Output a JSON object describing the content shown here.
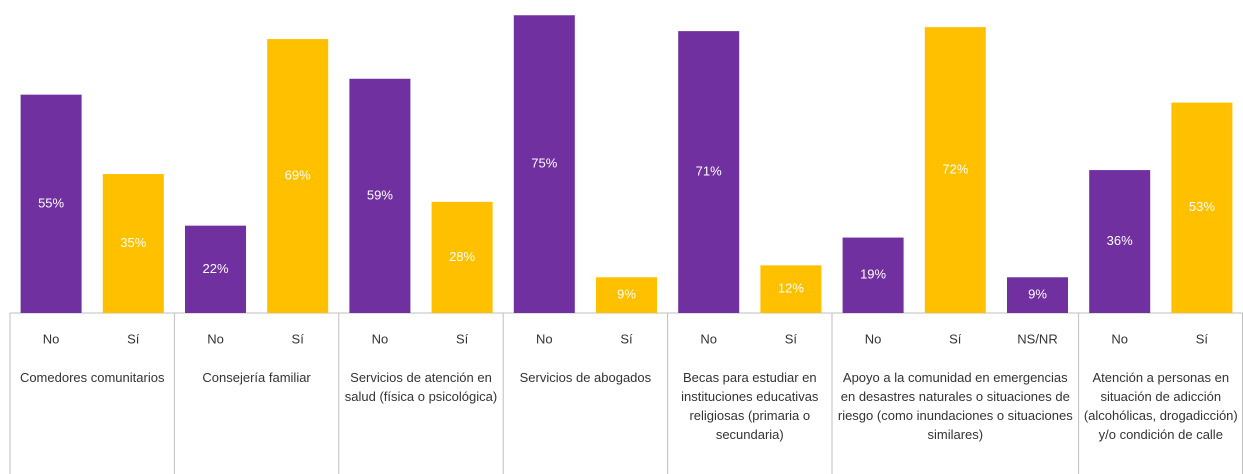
{
  "chart_data": {
    "type": "bar",
    "ylim": [
      0,
      80
    ],
    "groups": [
      {
        "name": "Comedores comunitarios",
        "categories": [
          "No",
          "Sí"
        ],
        "values": [
          55,
          35
        ],
        "value_labels": [
          "55%",
          "35%"
        ],
        "colors": [
          "#7030a0",
          "#ffc000"
        ]
      },
      {
        "name": "Consejería familiar",
        "categories": [
          "No",
          "Sí"
        ],
        "values": [
          22,
          69
        ],
        "value_labels": [
          "22%",
          "69%"
        ],
        "colors": [
          "#7030a0",
          "#ffc000"
        ]
      },
      {
        "name": "Servicios de atención en salud (física o psicológica)",
        "categories": [
          "No",
          "Sí"
        ],
        "values": [
          59,
          28
        ],
        "value_labels": [
          "59%",
          "28%"
        ],
        "colors": [
          "#7030a0",
          "#ffc000"
        ]
      },
      {
        "name": "Servicios de abogados",
        "categories": [
          "No",
          "Sí"
        ],
        "values": [
          75,
          9
        ],
        "value_labels": [
          "75%",
          "9%"
        ],
        "colors": [
          "#7030a0",
          "#ffc000"
        ]
      },
      {
        "name": "Becas para estudiar en instituciones educativas religiosas (primaria o secundaria)",
        "categories": [
          "No",
          "Sí"
        ],
        "values": [
          71,
          12
        ],
        "value_labels": [
          "71%",
          "12%"
        ],
        "colors": [
          "#7030a0",
          "#ffc000"
        ]
      },
      {
        "name": "Apoyo a la comunidad en emergencias en desastres naturales o situaciones de riesgo (como inundaciones o situaciones similares)",
        "categories": [
          "No",
          "Sí",
          "NS/NR"
        ],
        "values": [
          19,
          72,
          9
        ],
        "value_labels": [
          "19%",
          "72%",
          "9%"
        ],
        "colors": [
          "#7030a0",
          "#ffc000",
          "#7030a0"
        ]
      },
      {
        "name": "Atención a personas en situación de adicción (alcohólicas, drogadicción) y/o condición de calle",
        "categories": [
          "No",
          "Sí"
        ],
        "values": [
          36,
          53
        ],
        "value_labels": [
          "36%",
          "53%"
        ],
        "colors": [
          "#7030a0",
          "#ffc000"
        ]
      }
    ]
  }
}
